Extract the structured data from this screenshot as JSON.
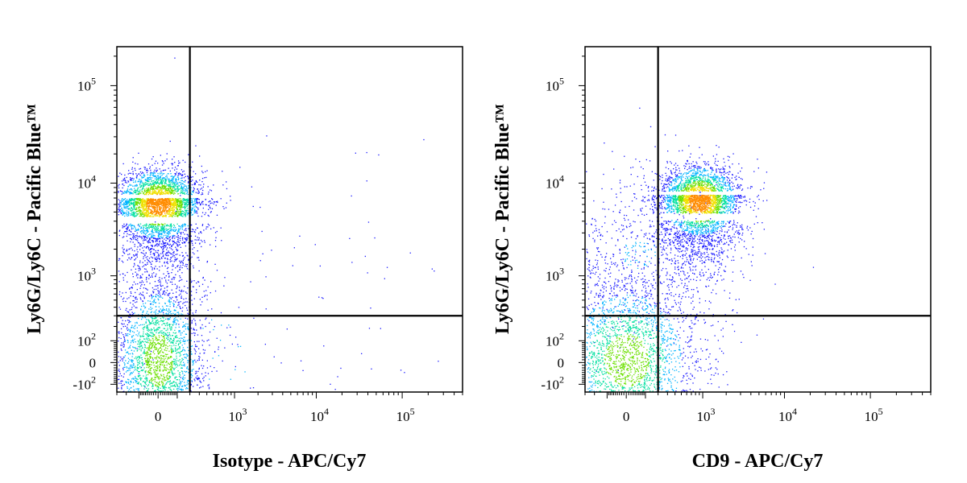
{
  "chart_data": [
    {
      "type": "scatter",
      "title": "",
      "xlabel": "Isotype - APC/Cy7",
      "ylabel": "Ly6G/Ly6C - Pacific Blue™",
      "x_scale": "biexponential",
      "y_scale": "biexponential",
      "xlim": [
        -300,
        500000
      ],
      "ylim": [
        -150,
        250000
      ],
      "x_ticks": [
        {
          "value": 0,
          "base": "0",
          "exp": ""
        },
        {
          "value": 1000,
          "base": "10",
          "exp": "3"
        },
        {
          "value": 10000,
          "base": "10",
          "exp": "4"
        },
        {
          "value": 100000,
          "base": "10",
          "exp": "5"
        }
      ],
      "y_ticks": [
        {
          "value": -100,
          "base": "-10",
          "exp": "2"
        },
        {
          "value": 0,
          "base": "0",
          "exp": ""
        },
        {
          "value": 100,
          "base": "10",
          "exp": "2"
        },
        {
          "value": 1000,
          "base": "10",
          "exp": "3"
        },
        {
          "value": 10000,
          "base": "10",
          "exp": "4"
        },
        {
          "value": 100000,
          "base": "10",
          "exp": "5"
        }
      ],
      "quadrant_gate": {
        "x": 200,
        "y": 300
      },
      "density_colormap": [
        "#1a1aff",
        "#00b4ff",
        "#00e0a0",
        "#6ce000",
        "#f0e000",
        "#ff8c00",
        "#ff1a00"
      ],
      "populations": [
        {
          "name": "",
          "x_center": 0,
          "y_center": 6000,
          "n_cells": 3600
        },
        {
          "name": "",
          "x_center": 0,
          "y_center": 10,
          "n_cells": 2700
        },
        {
          "name": "",
          "x_center": 500,
          "y_center": 60,
          "n_cells": 260
        }
      ]
    },
    {
      "type": "scatter",
      "title": "",
      "xlabel": "CD9 - APC/Cy7",
      "ylabel": "Ly6G/Ly6C - Pacific Blue™",
      "x_scale": "biexponential",
      "y_scale": "biexponential",
      "xlim": [
        -300,
        500000
      ],
      "ylim": [
        -150,
        250000
      ],
      "x_ticks": [
        {
          "value": 0,
          "base": "0",
          "exp": ""
        },
        {
          "value": 1000,
          "base": "10",
          "exp": "3"
        },
        {
          "value": 10000,
          "base": "10",
          "exp": "4"
        },
        {
          "value": 100000,
          "base": "10",
          "exp": "5"
        }
      ],
      "y_ticks": [
        {
          "value": -100,
          "base": "-10",
          "exp": "2"
        },
        {
          "value": 0,
          "base": "0",
          "exp": ""
        },
        {
          "value": 100,
          "base": "10",
          "exp": "2"
        },
        {
          "value": 1000,
          "base": "10",
          "exp": "3"
        },
        {
          "value": 10000,
          "base": "10",
          "exp": "4"
        },
        {
          "value": 100000,
          "base": "10",
          "exp": "5"
        }
      ],
      "quadrant_gate": {
        "x": 200,
        "y": 300
      },
      "density_colormap": [
        "#1a1aff",
        "#00b4ff",
        "#00e0a0",
        "#6ce000",
        "#f0e000",
        "#ff8c00",
        "#ff1a00"
      ],
      "populations": [
        {
          "name": "",
          "x_center": 900,
          "y_center": 6500,
          "n_cells": 3200
        },
        {
          "name": "",
          "x_center": 0,
          "y_center": 10,
          "n_cells": 2900
        },
        {
          "name": "",
          "x_center": 60,
          "y_center": 1800,
          "n_cells": 700
        }
      ]
    }
  ]
}
